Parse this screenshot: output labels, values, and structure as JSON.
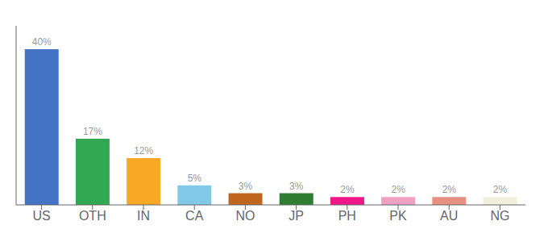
{
  "chart_data": {
    "type": "bar",
    "categories": [
      "US",
      "OTH",
      "IN",
      "CA",
      "NO",
      "JP",
      "PH",
      "PK",
      "AU",
      "NG"
    ],
    "values": [
      40,
      17,
      12,
      5,
      3,
      3,
      2,
      2,
      2,
      2
    ],
    "value_labels": [
      "40%",
      "17%",
      "12%",
      "5%",
      "3%",
      "3%",
      "2%",
      "2%",
      "2%",
      "2%"
    ],
    "data_labels": true,
    "colors": [
      "#4472c4",
      "#33a853",
      "#f9a825",
      "#80c9e8",
      "#c0651d",
      "#2e7d32",
      "#f01888",
      "#f0a0c0",
      "#e89080",
      "#f0f0dc"
    ],
    "ylim": [
      0,
      46
    ],
    "yticks": [],
    "grid": false,
    "tick_labels": "x"
  }
}
